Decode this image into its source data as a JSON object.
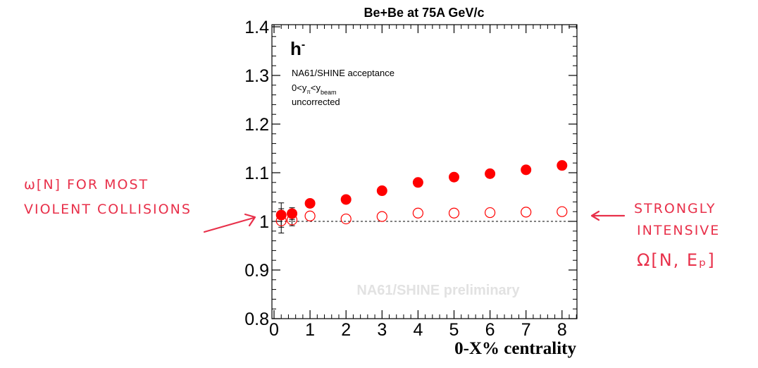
{
  "chart_data": {
    "type": "scatter",
    "title": "Be+Be at 75A GeV/c",
    "xlabel": "0-X% centrality",
    "ylabel": "",
    "xlim": [
      0,
      8.5
    ],
    "ylim": [
      0.8,
      1.4
    ],
    "x_ticks": [
      "0",
      "1",
      "2",
      "3",
      "4",
      "5",
      "6",
      "7",
      "8"
    ],
    "y_ticks": [
      "0.8",
      "0.9",
      "1",
      "1.1",
      "1.2",
      "1.3",
      "1.4"
    ],
    "reference_line": 1.0,
    "series": [
      {
        "style": "filled",
        "color": "#ff0000",
        "x": [
          0.2,
          0.5,
          1,
          2,
          3,
          4,
          5,
          6,
          7,
          8
        ],
        "y": [
          1.013,
          1.016,
          1.037,
          1.045,
          1.063,
          1.08,
          1.091,
          1.098,
          1.106,
          1.115
        ],
        "yerr": [
          0.025,
          0.012,
          0,
          0,
          0,
          0,
          0,
          0,
          0,
          0
        ]
      },
      {
        "style": "open",
        "color": "#ff0000",
        "x": [
          0.2,
          0.5,
          1,
          2,
          3,
          4,
          5,
          6,
          7,
          8
        ],
        "y": [
          1.001,
          1.003,
          1.011,
          1.005,
          1.01,
          1.017,
          1.017,
          1.018,
          1.019,
          1.02
        ],
        "yerr": [
          0.025,
          0.012,
          0,
          0,
          0,
          0,
          0,
          0,
          0,
          0
        ]
      }
    ],
    "legend": {
      "particle": "h",
      "superscript": "-",
      "acceptance": "NA61/SHINE acceptance",
      "cut_prefix": "0<y",
      "cut_sub": "π",
      "cut_mid": "<y",
      "cut_sub2": "beam",
      "status": "uncorrected"
    },
    "watermark": "NA61/SHINE preliminary"
  },
  "annotations": {
    "left": {
      "line1": "ω[N] FOR MOST",
      "line2": "VIOLENT COLLISIONS"
    },
    "right": {
      "line1": "STRONGLY",
      "line2": "INTENSIVE",
      "line3": "Ω[N, Eₚ]"
    }
  },
  "colors": {
    "marker": "#ff0000",
    "handwriting": "#e8304a"
  }
}
